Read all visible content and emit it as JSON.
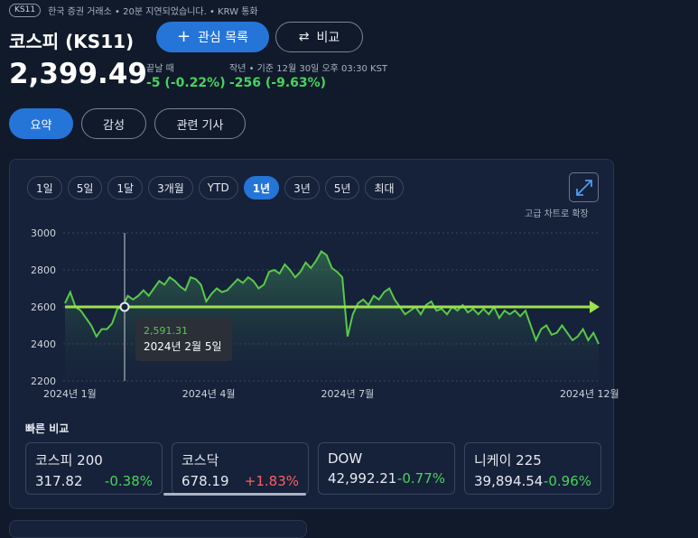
{
  "header": {
    "ticker_badge": "KS11",
    "exchange_note": "한국 증권 거래소 • 20분 지연되었습니다. • KRW 통화",
    "title": "코스피 (KS11)",
    "watchlist_label": "관심 목록",
    "compare_label": "비교"
  },
  "quote": {
    "price": "2,399.49",
    "close_label": "끝날 때",
    "close_change": "-5 (-0.22%)",
    "year_label": "작년 • 기준 12월 30일 오후 03:30 KST",
    "year_change": "-256 (-9.63%)"
  },
  "tabs": [
    {
      "label": "요약",
      "active": true
    },
    {
      "label": "감성",
      "active": false
    },
    {
      "label": "관련 기사",
      "active": false
    }
  ],
  "ranges": [
    {
      "label": "1일",
      "active": false
    },
    {
      "label": "5일",
      "active": false
    },
    {
      "label": "1달",
      "active": false
    },
    {
      "label": "3개월",
      "active": false
    },
    {
      "label": "YTD",
      "active": false
    },
    {
      "label": "1년",
      "active": true
    },
    {
      "label": "3년",
      "active": false
    },
    {
      "label": "5년",
      "active": false
    },
    {
      "label": "최대",
      "active": false
    }
  ],
  "expand_label": "고급 차트로 확장",
  "tooltip": {
    "value": "2,591.31",
    "date": "2024년 2월 5일"
  },
  "chart_data": {
    "type": "area",
    "title": "",
    "xlabel": "",
    "ylabel": "",
    "ylim": [
      2200,
      3000
    ],
    "yticks": [
      3000,
      2800,
      2600,
      2400,
      2200
    ],
    "xtick_labels": [
      {
        "label": "2024년 1월",
        "t": 0
      },
      {
        "label": "2024년 4월",
        "t": 0.25
      },
      {
        "label": "2024년 7월",
        "t": 0.5
      },
      {
        "label": "2024년 12월",
        "t": 0.93
      }
    ],
    "reference_value": 2600,
    "grid": true,
    "series": [
      {
        "values": [
          2620,
          2680,
          2600,
          2580,
          2540,
          2500,
          2440,
          2480,
          2480,
          2510,
          2590,
          2600,
          2660,
          2640,
          2660,
          2690,
          2660,
          2700,
          2740,
          2720,
          2760,
          2740,
          2710,
          2690,
          2760,
          2750,
          2720,
          2630,
          2670,
          2700,
          2680,
          2690,
          2720,
          2750,
          2730,
          2760,
          2740,
          2700,
          2720,
          2790,
          2800,
          2780,
          2830,
          2800,
          2760,
          2790,
          2840,
          2810,
          2850,
          2900,
          2880,
          2810,
          2790,
          2760,
          2440,
          2560,
          2620,
          2640,
          2610,
          2660,
          2640,
          2680,
          2700,
          2640,
          2600,
          2560,
          2580,
          2600,
          2560,
          2610,
          2630,
          2580,
          2590,
          2560,
          2600,
          2580,
          2610,
          2570,
          2590,
          2560,
          2590,
          2560,
          2600,
          2540,
          2580,
          2560,
          2580,
          2550,
          2580,
          2500,
          2420,
          2480,
          2500,
          2450,
          2460,
          2500,
          2460,
          2420,
          2440,
          2480,
          2420,
          2460,
          2400
        ]
      }
    ],
    "tooltip_index": 11
  },
  "quick_compare": {
    "title": "빠른 비교",
    "items": [
      {
        "name": "코스피 200",
        "value": "317.82",
        "change": "-0.38%",
        "dir": "down"
      },
      {
        "name": "코스닥",
        "value": "678.19",
        "change": "+1.83%",
        "dir": "up"
      },
      {
        "name": "DOW",
        "value": "42,992.21",
        "change": "-0.77%",
        "dir": "down"
      },
      {
        "name": "니케이 225",
        "value": "39,894.54",
        "change": "-0.96%",
        "dir": "down"
      }
    ]
  },
  "colors": {
    "accent": "#2575d9",
    "positive_text": "#47d35e",
    "line": "#58c94a",
    "ref_line": "#9be24d",
    "up": "#ff5f5f"
  }
}
